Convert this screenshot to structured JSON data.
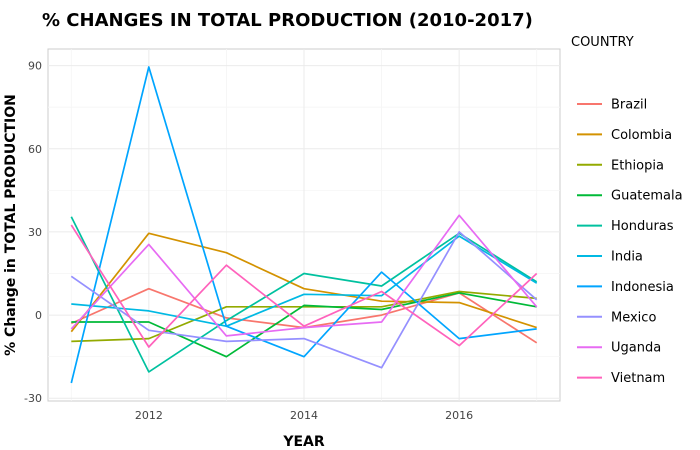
{
  "chart_data": {
    "type": "line",
    "title": "% CHANGES IN TOTAL PRODUCTION (2010-2017)",
    "xlabel": "YEAR",
    "ylabel": "% Change in TOTAL PRODUCTION",
    "legend_title": "COUNTRY",
    "legend_position": "right",
    "grid": true,
    "xlim": [
      2010.7,
      2017.3
    ],
    "ylim": [
      -31,
      96
    ],
    "x_ticks": [
      2012,
      2014,
      2016
    ],
    "y_ticks": [
      -30,
      0,
      30,
      60,
      90
    ],
    "x": [
      2011,
      2012,
      2013,
      2014,
      2015,
      2016,
      2017
    ],
    "series": [
      {
        "name": "Brazil",
        "color": "#F8766D",
        "values": [
          -3,
          9.5,
          -1,
          -4.5,
          0,
          8,
          -10
        ]
      },
      {
        "name": "Colombia",
        "color": "#D39200",
        "values": [
          -6,
          29.5,
          22.5,
          9.5,
          5,
          4.5,
          -4.5
        ]
      },
      {
        "name": "Ethiopia",
        "color": "#93AA00",
        "values": [
          -9.5,
          -8.5,
          3,
          3,
          3,
          8.5,
          6
        ]
      },
      {
        "name": "Guatemala",
        "color": "#00BA38",
        "values": [
          -2.5,
          -2.5,
          -15,
          3.5,
          2,
          8,
          3
        ]
      },
      {
        "name": "Honduras",
        "color": "#00C19F",
        "values": [
          35.5,
          -20.5,
          -2,
          15,
          10.5,
          29.5,
          12
        ]
      },
      {
        "name": "India",
        "color": "#00B9E3",
        "values": [
          4,
          1.5,
          -4,
          7.5,
          7,
          28.5,
          11.5
        ]
      },
      {
        "name": "Indonesia",
        "color": "#00A5FF",
        "values": [
          -24.5,
          89.5,
          -4,
          -15,
          15.5,
          -8.5,
          -5
        ]
      },
      {
        "name": "Mexico",
        "color": "#9590FF",
        "values": [
          14,
          -5.5,
          -9.5,
          -8.5,
          -19,
          30,
          5.5
        ]
      },
      {
        "name": "Uganda",
        "color": "#E76BF3",
        "values": [
          -5,
          25.5,
          -7.5,
          -4.5,
          -2.5,
          36,
          3
        ]
      },
      {
        "name": "Vietnam",
        "color": "#FF62BC",
        "values": [
          32.5,
          -11.5,
          18,
          -4,
          8.5,
          -11,
          15
        ]
      }
    ]
  }
}
